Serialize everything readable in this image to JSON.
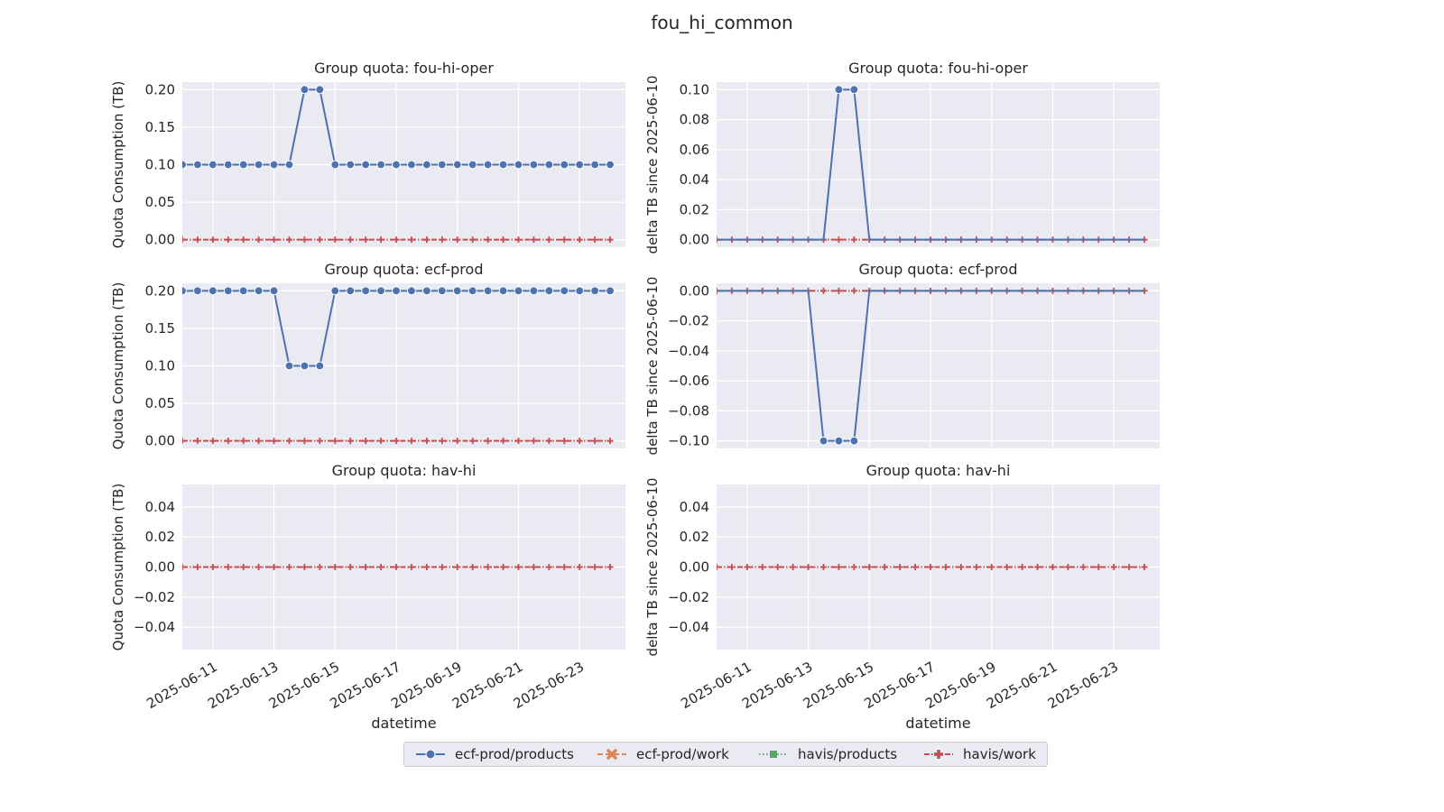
{
  "figure": {
    "suptitle": "fou_hi_common"
  },
  "colors": {
    "ecf-prod/products": "#4c72b0",
    "ecf-prod/work": "#dd8452",
    "havis/products": "#55a868",
    "havis/work": "#c44e52",
    "axes_bg": "#eaeaf2",
    "grid": "#ffffff"
  },
  "legend": {
    "placement": "bottom-center",
    "items": [
      {
        "name": "ecf-prod/products",
        "marker": "circle",
        "linestyle": "solid"
      },
      {
        "name": "ecf-prod/work",
        "marker": "x-filled",
        "linestyle": "dashed"
      },
      {
        "name": "havis/products",
        "marker": "square",
        "linestyle": "dotted"
      },
      {
        "name": "havis/work",
        "marker": "plus-filled",
        "linestyle": "dashdot"
      }
    ]
  },
  "chart_data": [
    {
      "type": "line",
      "title": "Group quota: fou-hi-oper",
      "xlabel": "",
      "ylabel": "Quota Consumption (TB)",
      "xlim": [
        "2025-06-10",
        "2025-06-24T12:00"
      ],
      "ylim": [
        -0.01,
        0.21
      ],
      "yticks": [
        "0.00",
        "0.05",
        "0.10",
        "0.15",
        "0.20"
      ],
      "xticks": [
        "2025-06-11",
        "2025-06-13",
        "2025-06-15",
        "2025-06-17",
        "2025-06-19",
        "2025-06-21",
        "2025-06-23"
      ],
      "show_xticklabels": false,
      "grid": true,
      "series": [
        {
          "name": "ecf-prod/products",
          "spike": {
            "start": "2025-06-14T00:00",
            "end": "2025-06-14T12:00",
            "value": 0.2
          },
          "base": 0.1
        },
        {
          "name": "havis/work",
          "base": 0.0
        }
      ]
    },
    {
      "type": "line",
      "title": "Group quota: fou-hi-oper",
      "xlabel": "",
      "ylabel": "delta TB since 2025-06-10",
      "xlim": [
        "2025-06-10",
        "2025-06-24T12:00"
      ],
      "ylim": [
        -0.005,
        0.105
      ],
      "yticks": [
        "0.00",
        "0.02",
        "0.04",
        "0.06",
        "0.08",
        "0.10"
      ],
      "xticks": [
        "2025-06-11",
        "2025-06-13",
        "2025-06-15",
        "2025-06-17",
        "2025-06-19",
        "2025-06-21",
        "2025-06-23"
      ],
      "show_xticklabels": false,
      "grid": true,
      "series": [
        {
          "name": "ecf-prod/products",
          "spike": {
            "start": "2025-06-14T00:00",
            "end": "2025-06-14T12:00",
            "value": 0.1
          },
          "base": 0.0,
          "no_base_markers": true
        },
        {
          "name": "havis/work",
          "base": 0.0
        }
      ]
    },
    {
      "type": "line",
      "title": "Group quota: ecf-prod",
      "xlabel": "",
      "ylabel": "Quota Consumption (TB)",
      "xlim": [
        "2025-06-10",
        "2025-06-24T12:00"
      ],
      "ylim": [
        -0.01,
        0.21
      ],
      "yticks": [
        "0.00",
        "0.05",
        "0.10",
        "0.15",
        "0.20"
      ],
      "xticks": [
        "2025-06-11",
        "2025-06-13",
        "2025-06-15",
        "2025-06-17",
        "2025-06-19",
        "2025-06-21",
        "2025-06-23"
      ],
      "show_xticklabels": false,
      "grid": true,
      "series": [
        {
          "name": "ecf-prod/products",
          "spike": {
            "start": "2025-06-13T12:00",
            "end": "2025-06-14T18:00",
            "value": 0.1
          },
          "base": 0.2
        },
        {
          "name": "havis/work",
          "base": 0.0
        }
      ]
    },
    {
      "type": "line",
      "title": "Group quota: ecf-prod",
      "xlabel": "",
      "ylabel": "delta TB since 2025-06-10",
      "xlim": [
        "2025-06-10",
        "2025-06-24T12:00"
      ],
      "ylim": [
        -0.105,
        0.005
      ],
      "yticks": [
        "0.00",
        "−0.02",
        "−0.04",
        "−0.06",
        "−0.08",
        "−0.10"
      ],
      "xticks": [
        "2025-06-11",
        "2025-06-13",
        "2025-06-15",
        "2025-06-17",
        "2025-06-19",
        "2025-06-21",
        "2025-06-23"
      ],
      "show_xticklabels": false,
      "grid": true,
      "series": [
        {
          "name": "ecf-prod/products",
          "spike": {
            "start": "2025-06-13T12:00",
            "end": "2025-06-14T18:00",
            "value": -0.1
          },
          "base": 0.0,
          "no_base_markers": true
        },
        {
          "name": "havis/work",
          "base": 0.0
        }
      ]
    },
    {
      "type": "line",
      "title": "Group quota: hav-hi",
      "xlabel": "datetime",
      "ylabel": "Quota Consumption (TB)",
      "xlim": [
        "2025-06-10",
        "2025-06-24T12:00"
      ],
      "ylim": [
        -0.055,
        0.055
      ],
      "yticks": [
        "0.04",
        "0.02",
        "0.00",
        "−0.02",
        "−0.04"
      ],
      "xticks": [
        "2025-06-11",
        "2025-06-13",
        "2025-06-15",
        "2025-06-17",
        "2025-06-19",
        "2025-06-21",
        "2025-06-23"
      ],
      "show_xticklabels": true,
      "grid": true,
      "series": [
        {
          "name": "havis/work",
          "base": 0.0
        }
      ]
    },
    {
      "type": "line",
      "title": "Group quota: hav-hi",
      "xlabel": "datetime",
      "ylabel": "delta TB since 2025-06-10",
      "xlim": [
        "2025-06-10",
        "2025-06-24T12:00"
      ],
      "ylim": [
        -0.055,
        0.055
      ],
      "yticks": [
        "0.04",
        "0.02",
        "0.00",
        "−0.02",
        "−0.04"
      ],
      "xticks": [
        "2025-06-11",
        "2025-06-13",
        "2025-06-15",
        "2025-06-17",
        "2025-06-19",
        "2025-06-21",
        "2025-06-23"
      ],
      "show_xticklabels": true,
      "grid": true,
      "series": [
        {
          "name": "havis/work",
          "base": 0.0
        }
      ]
    }
  ]
}
